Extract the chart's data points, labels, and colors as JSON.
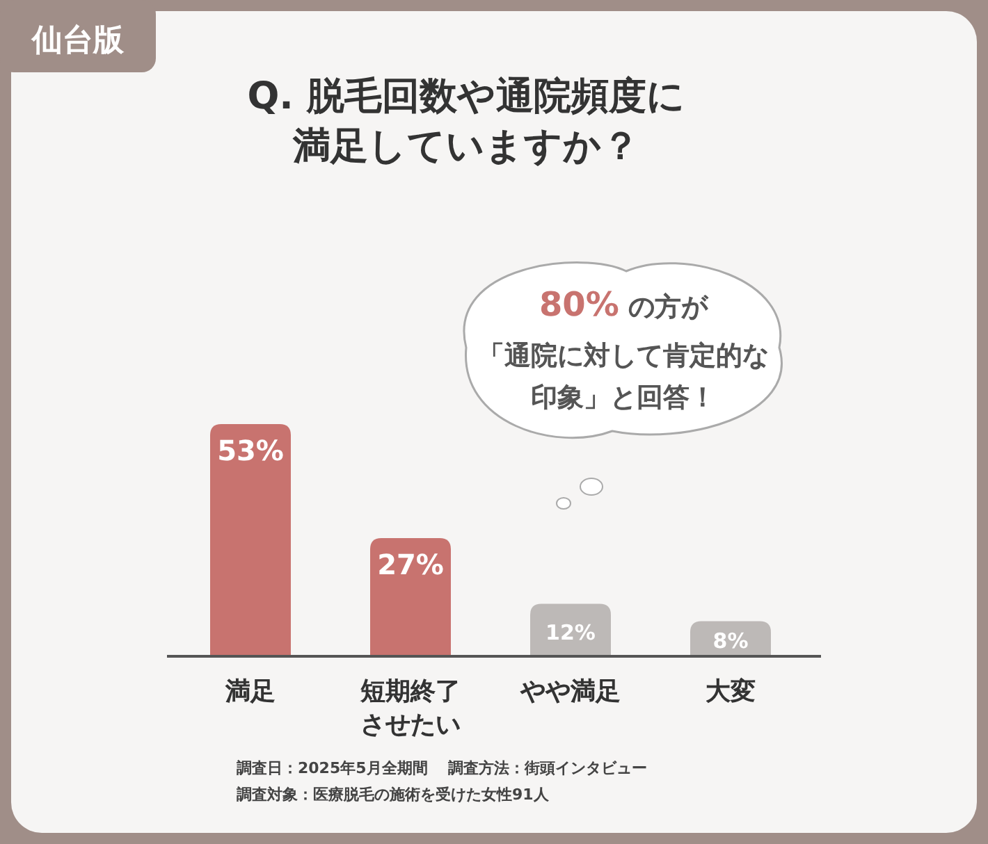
{
  "chart_data": {
    "type": "bar",
    "title": "Q. 脱毛回数や通院頻度に満足していますか？",
    "subtitle": "仙台版",
    "categories": [
      "満足",
      "短期終了させたい",
      "やや満足",
      "大変"
    ],
    "values": [
      53,
      27,
      12,
      8
    ],
    "colors": [
      "#c8736f",
      "#c8736f",
      "#bdb9b7",
      "#bdb9b7"
    ],
    "value_labels": [
      "53%",
      "27%",
      "12%",
      "8%"
    ],
    "annotations": [
      "**80%** の方が",
      "「通院に対して肯定的な",
      "印象」と回答！",
      "調査日：2025年5月全期間",
      "調査方法：街頭インタビュー",
      "調査対象：医療脱毛の施術を受けた女性91人"
    ]
  }
}
